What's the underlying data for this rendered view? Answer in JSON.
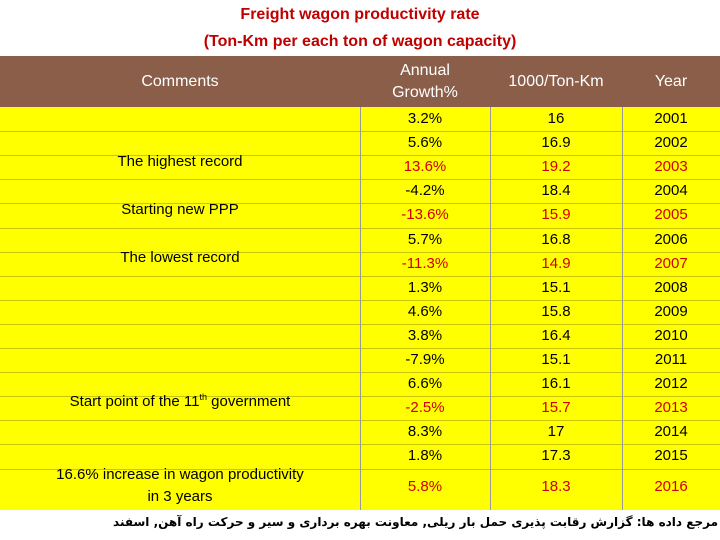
{
  "title": {
    "line1": "Freight wagon productivity rate",
    "line2": "(Ton-Km per each ton of wagon capacity)"
  },
  "headers": {
    "comments": "Comments",
    "growth_line1": "Annual",
    "growth_line2": "Growth%",
    "ton_km": "1000/Ton-Km",
    "year": "Year"
  },
  "rows": [
    {
      "growth": "3.2%",
      "ton_km": "16",
      "year": "2001",
      "highlight": false
    },
    {
      "growth": "5.6%",
      "ton_km": "16.9",
      "year": "2002",
      "highlight": false
    },
    {
      "growth": "13.6%",
      "ton_km": "19.2",
      "year": "2003",
      "highlight": true
    },
    {
      "growth": "-4.2%",
      "ton_km": "18.4",
      "year": "2004",
      "highlight": false
    },
    {
      "growth": "-13.6%",
      "ton_km": "15.9",
      "year": "2005",
      "highlight": true
    },
    {
      "growth": "5.7%",
      "ton_km": "16.8",
      "year": "2006",
      "highlight": false
    },
    {
      "growth": "-11.3%",
      "ton_km": "14.9",
      "year": "2007",
      "highlight": true
    },
    {
      "growth": "1.3%",
      "ton_km": "15.1",
      "year": "2008",
      "highlight": false
    },
    {
      "growth": "4.6%",
      "ton_km": "15.8",
      "year": "2009",
      "highlight": false
    },
    {
      "growth": "3.8%",
      "ton_km": "16.4",
      "year": "2010",
      "highlight": false
    },
    {
      "growth": "-7.9%",
      "ton_km": "15.1",
      "year": "2011",
      "highlight": false
    },
    {
      "growth": "6.6%",
      "ton_km": "16.1",
      "year": "2012",
      "highlight": false
    },
    {
      "growth": "-2.5%",
      "ton_km": "15.7",
      "year": "2013",
      "highlight": true
    },
    {
      "growth": "8.3%",
      "ton_km": "17",
      "year": "2014",
      "highlight": false
    },
    {
      "growth": "1.8%",
      "ton_km": "17.3",
      "year": "2015",
      "highlight": false
    },
    {
      "growth": "5.8%",
      "ton_km": "18.3",
      "year": "2016",
      "highlight": true
    }
  ],
  "comments": {
    "highest": "The highest record",
    "ppp": "Starting new PPP",
    "lowest": "The lowest record",
    "eleventh_prefix": "Start point of the 11",
    "eleventh_sup": "th",
    "eleventh_suffix": " government",
    "increase_line1": "16.6% increase in wagon productivity",
    "increase_line2": "in 3 years"
  },
  "source": "مرجع داده ها: گزارش رقابت پذیری حمل بار ریلی, معاونت بهره برداری و سیر و حرکت راه آهن, اسفند",
  "colors": {
    "title": "#c00000",
    "header_bg": "#8a5e49",
    "row_bg": "#ffff00",
    "highlight_text": "#d00000"
  }
}
